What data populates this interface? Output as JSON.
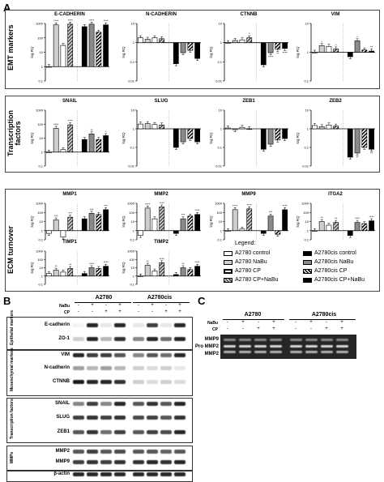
{
  "panels": {
    "a": "A",
    "b": "B",
    "c": "C"
  },
  "panel_a": {
    "sections": [
      {
        "label_line1": "EMT markers",
        "label_line2": ""
      },
      {
        "label_line1": "Transcription",
        "label_line2": "factors"
      },
      {
        "label_line1": "ECM turnover",
        "label_line2": ""
      }
    ],
    "ylabel": "log RQ"
  },
  "legend": {
    "title": "Legend:",
    "items": [
      {
        "label": "A2780 control",
        "swatch": "white"
      },
      {
        "label": "A2780cis control",
        "swatch": "black"
      },
      {
        "label": "A2780 NaBu",
        "swatch": "lightgray"
      },
      {
        "label": "A2780cis NaBu",
        "swatch": "gray"
      },
      {
        "label": "A2780 CP",
        "swatch": "white"
      },
      {
        "label": "A2780cis CP",
        "swatch": "check"
      },
      {
        "label": "A2780 CP+NaBu",
        "swatch": "check"
      },
      {
        "label": "A2780cis CP+NaBu",
        "swatch": "black"
      }
    ]
  },
  "chart_data": [
    {
      "type": "bar",
      "title": "E-CADHERIN",
      "ylabel": "log RQ",
      "log": true,
      "ylim": [
        0.1,
        1000
      ],
      "ticks": [
        "0.1",
        "1",
        "10",
        "100",
        "1000"
      ],
      "values": [
        1,
        800,
        30,
        900,
        600,
        900,
        250,
        800
      ],
      "sig": [
        "",
        "****",
        "",
        "****",
        "",
        "****",
        "",
        "****"
      ]
    },
    {
      "type": "bar",
      "title": "N-CADHERIN",
      "ylabel": "log RQ",
      "log": true,
      "ylim": [
        0.01,
        10
      ],
      "ticks": [
        "0.01",
        "0.1",
        "1",
        "10"
      ],
      "values": [
        1.8,
        1.5,
        1.8,
        1.6,
        0.08,
        0.3,
        0.4,
        0.15
      ],
      "sig": [
        "",
        "",
        "",
        "",
        "",
        "",
        "",
        ""
      ]
    },
    {
      "type": "bar",
      "title": "CTNNB",
      "ylabel": "log RQ",
      "log": true,
      "ylim": [
        0.01,
        10
      ],
      "ticks": [
        "0.01",
        "0.1",
        "1",
        "10"
      ],
      "values": [
        1,
        1.3,
        1.4,
        1.8,
        0.07,
        0.3,
        0.45,
        0.5
      ],
      "sig": [
        "",
        "",
        "",
        "*",
        "",
        "****",
        "**",
        "****"
      ]
    },
    {
      "type": "bar",
      "title": "VIM",
      "ylabel": "log RQ",
      "log": true,
      "ylim": [
        0.1,
        10
      ],
      "ticks": [
        "0.1",
        "1",
        "10"
      ],
      "values": [
        1,
        1.7,
        1.6,
        1.3,
        0.7,
        2.5,
        1.2,
        1.1
      ],
      "sig": [
        "",
        "*",
        "",
        "*",
        "",
        "*",
        "",
        "**"
      ]
    },
    {
      "type": "bar",
      "title": "SNAIL",
      "ylabel": "log RQ",
      "log": true,
      "ylim": [
        0.1,
        1000
      ],
      "ticks": [
        "0.1",
        "1",
        "10",
        "100",
        "1000"
      ],
      "values": [
        1,
        50,
        1.5,
        90,
        8,
        20,
        8,
        15
      ],
      "sig": [
        "",
        "****",
        "",
        "****",
        "",
        "**",
        "",
        "*"
      ]
    },
    {
      "type": "bar",
      "title": "SLUG",
      "ylabel": "log RQ",
      "log": true,
      "ylim": [
        0.01,
        10
      ],
      "ticks": [
        "0.01",
        "0.1",
        "1",
        "10"
      ],
      "values": [
        1.8,
        1.9,
        1.7,
        1.6,
        0.1,
        0.2,
        0.3,
        0.2
      ],
      "sig": [
        "",
        "",
        "",
        "",
        "",
        "",
        "",
        ""
      ]
    },
    {
      "type": "bar",
      "title": "ZEB1",
      "ylabel": "log RQ",
      "log": true,
      "ylim": [
        0.01,
        10
      ],
      "ticks": [
        "0.01",
        "0.1",
        "1",
        "10"
      ],
      "values": [
        1.1,
        0.9,
        1.2,
        1.0,
        0.08,
        0.15,
        0.25,
        0.3
      ],
      "sig": [
        "",
        "",
        "",
        "",
        "",
        "",
        "",
        ""
      ]
    },
    {
      "type": "bar",
      "title": "ZEB2",
      "ylabel": "log RQ",
      "log": true,
      "ylim": [
        0.01,
        10
      ],
      "ticks": [
        "0.01",
        "0.1",
        "1",
        "10"
      ],
      "values": [
        1.5,
        1.3,
        1.6,
        1.4,
        0.03,
        0.05,
        0.1,
        0.08
      ],
      "sig": [
        "",
        "",
        "",
        "",
        "",
        "**",
        "",
        "**"
      ]
    },
    {
      "type": "bar",
      "title": "MMP1",
      "ylabel": "log RQ",
      "log": true,
      "ylim": [
        0.1,
        1000
      ],
      "ticks": [
        "0.1",
        "1",
        "10",
        "100",
        "1000"
      ],
      "values": [
        0.5,
        15,
        0.2,
        30,
        20,
        80,
        60,
        200
      ],
      "sig": [
        "",
        "***",
        "",
        "***",
        "",
        "***",
        "",
        "***"
      ]
    },
    {
      "type": "bar",
      "title": "MMP2",
      "ylabel": "log RQ",
      "log": true,
      "ylim": [
        0.1,
        1000
      ],
      "ticks": [
        "0.1",
        "1",
        "10",
        "100",
        "1000"
      ],
      "values": [
        0.3,
        300,
        20,
        400,
        0.5,
        20,
        40,
        60
      ],
      "sig": [
        "",
        "****",
        "",
        "****",
        "",
        "***",
        "",
        "****"
      ]
    },
    {
      "type": "bar",
      "title": "MMP9",
      "ylabel": "log RQ",
      "log": true,
      "ylim": [
        0.1,
        1000
      ],
      "ticks": [
        "0.1",
        "1",
        "10",
        "100",
        "1000"
      ],
      "values": [
        1,
        200,
        1.5,
        250,
        0.5,
        40,
        0.4,
        200
      ],
      "sig": [
        "",
        "****",
        "",
        "****",
        "",
        "***",
        "",
        "****"
      ]
    },
    {
      "type": "bar",
      "title": "ITGA2",
      "ylabel": "log RQ",
      "log": true,
      "ylim": [
        0.1,
        1000
      ],
      "ticks": [
        "0.1",
        "1",
        "10",
        "100",
        "1000"
      ],
      "values": [
        1,
        10,
        4,
        8,
        0.3,
        8,
        6,
        12
      ],
      "sig": [
        "",
        "**",
        "",
        "**",
        "",
        "****",
        "",
        "****"
      ]
    },
    {
      "type": "bar",
      "title": "TIMP1",
      "ylabel": "log RQ",
      "log": true,
      "ylim": [
        0.1,
        1000
      ],
      "ticks": [
        "0.1",
        "1",
        "10",
        "100",
        "1000"
      ],
      "values": [
        2,
        5,
        3,
        8,
        2,
        10,
        8,
        15
      ],
      "sig": [
        "",
        "**",
        "",
        "**",
        "",
        "****",
        "",
        "****"
      ]
    },
    {
      "type": "bar",
      "title": "TIMP2",
      "ylabel": "log RQ",
      "log": true,
      "ylim": [
        0.1,
        1000
      ],
      "ticks": [
        "0.1",
        "1",
        "10",
        "100",
        "1000"
      ],
      "values": [
        1,
        20,
        4,
        40,
        1.5,
        10,
        6,
        15
      ],
      "sig": [
        "",
        "**",
        "",
        "****",
        "",
        "**",
        "",
        "****"
      ]
    }
  ],
  "panel_b": {
    "groups": [
      "A2780",
      "A2780cis"
    ],
    "treatments": [
      {
        "label": "NaBu",
        "signs": [
          "-",
          "+",
          "-",
          "+",
          "-",
          "+",
          "-",
          "+"
        ]
      },
      {
        "label": "CP",
        "signs": [
          "-",
          "-",
          "+",
          "+",
          "-",
          "-",
          "+",
          "+"
        ]
      }
    ],
    "sections": [
      {
        "label": "Epithelial markers",
        "rows": [
          "E-cadherin",
          "ZO-1"
        ]
      },
      {
        "label": "Mesenchymal markers",
        "rows": [
          "VIM",
          "N-cadherin",
          "CTNNB"
        ]
      },
      {
        "label": "Transcription factors",
        "rows": [
          "SNAIL",
          "SLUG",
          "ZEB1"
        ]
      },
      {
        "label": "MMPs",
        "rows": [
          "MMP2",
          "MMP9"
        ]
      },
      {
        "label": "",
        "rows": [
          "β-actin"
        ]
      }
    ]
  },
  "panel_c": {
    "groups": [
      "A2780",
      "A2780cis"
    ],
    "treatments": [
      {
        "label": "NaBu",
        "signs": [
          "-",
          "+",
          "-",
          "+",
          "-",
          "+",
          "-",
          "+"
        ]
      },
      {
        "label": "CP",
        "signs": [
          "-",
          "-",
          "+",
          "+",
          "-",
          "-",
          "+",
          "+"
        ]
      }
    ],
    "bands": [
      "MMP9",
      "Pro MMP2",
      "MMP2"
    ]
  }
}
